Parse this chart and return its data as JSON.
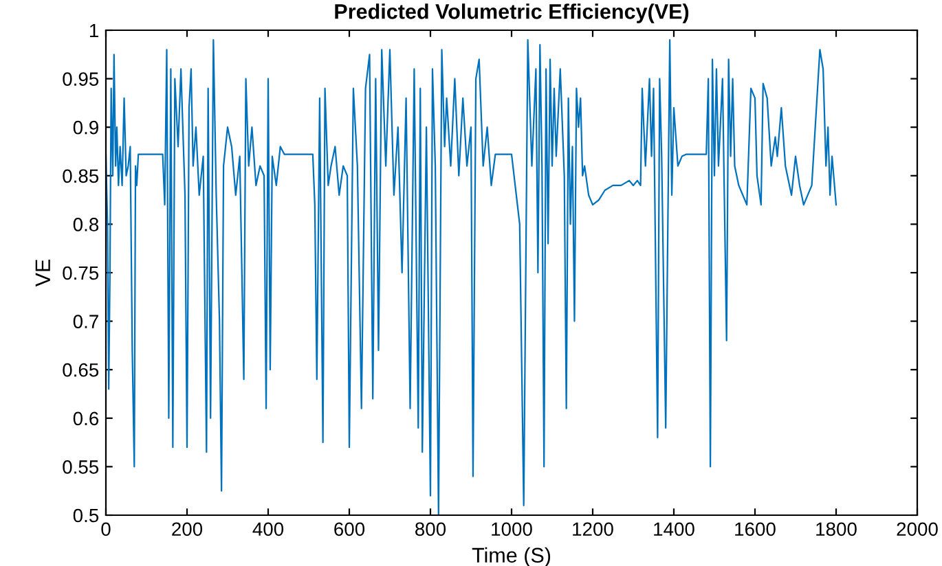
{
  "chart_data": {
    "type": "line",
    "title": "Predicted Volumetric Efficiency(VE)",
    "xlabel": "Time (S)",
    "ylabel": "VE",
    "xlim": [
      0,
      2000
    ],
    "xticks": [
      0,
      200,
      400,
      600,
      800,
      1000,
      1200,
      1400,
      1600,
      1800,
      2000
    ],
    "ylim": [
      0.5,
      1
    ],
    "yticks": [
      0.5,
      0.55,
      0.6,
      0.65,
      0.7,
      0.75,
      0.8,
      0.85,
      0.9,
      0.95,
      1
    ],
    "grid": false,
    "legend": false,
    "marker": "none",
    "line_style": "solid",
    "series": [
      {
        "color": "#0072bd",
        "x": [
          0,
          4,
          7,
          10,
          13,
          17,
          20,
          24,
          27,
          31,
          35,
          40,
          45,
          50,
          55,
          60,
          65,
          70,
          73,
          76,
          80,
          140,
          145,
          150,
          155,
          160,
          165,
          170,
          178,
          185,
          195,
          200,
          205,
          210,
          215,
          222,
          230,
          240,
          248,
          252,
          258,
          265,
          272,
          280,
          285,
          290,
          300,
          310,
          320,
          330,
          340,
          345,
          352,
          360,
          370,
          380,
          390,
          395,
          400,
          405,
          410,
          420,
          430,
          440,
          510,
          515,
          520,
          527,
          535,
          540,
          548,
          555,
          565,
          575,
          585,
          595,
          600,
          610,
          620,
          630,
          640,
          650,
          658,
          665,
          672,
          680,
          690,
          700,
          710,
          720,
          730,
          740,
          750,
          760,
          770,
          775,
          780,
          790,
          800,
          805,
          812,
          820,
          828,
          835,
          840,
          850,
          860,
          870,
          880,
          890,
          900,
          905,
          912,
          920,
          930,
          940,
          950,
          960,
          1000,
          1020,
          1030,
          1035,
          1040,
          1050,
          1060,
          1065,
          1070,
          1075,
          1080,
          1085,
          1090,
          1095,
          1100,
          1105,
          1110,
          1120,
          1130,
          1135,
          1140,
          1145,
          1150,
          1155,
          1160,
          1165,
          1170,
          1175,
          1180,
          1190,
          1200,
          1215,
          1230,
          1250,
          1270,
          1290,
          1300,
          1310,
          1318,
          1322,
          1330,
          1340,
          1345,
          1350,
          1360,
          1365,
          1370,
          1380,
          1390,
          1395,
          1400,
          1410,
          1420,
          1430,
          1480,
          1485,
          1490,
          1495,
          1500,
          1505,
          1510,
          1520,
          1530,
          1535,
          1540,
          1545,
          1550,
          1560,
          1570,
          1580,
          1590,
          1600,
          1605,
          1615,
          1620,
          1630,
          1640,
          1650,
          1655,
          1665,
          1675,
          1690,
          1700,
          1710,
          1720,
          1740,
          1760,
          1768,
          1775,
          1780,
          1785,
          1790,
          1800
        ],
        "values": [
          0.872,
          0.8,
          0.63,
          0.75,
          0.94,
          0.85,
          0.975,
          0.86,
          0.9,
          0.84,
          0.88,
          0.84,
          0.93,
          0.85,
          0.86,
          0.88,
          0.67,
          0.55,
          0.86,
          0.84,
          0.872,
          0.872,
          0.82,
          0.98,
          0.6,
          0.96,
          0.57,
          0.95,
          0.88,
          0.96,
          0.83,
          0.57,
          0.92,
          0.96,
          0.86,
          0.9,
          0.83,
          0.87,
          0.565,
          0.94,
          0.6,
          0.99,
          0.83,
          0.7,
          0.525,
          0.86,
          0.9,
          0.88,
          0.83,
          0.87,
          0.64,
          0.95,
          0.86,
          0.9,
          0.84,
          0.86,
          0.85,
          0.61,
          0.95,
          0.65,
          0.87,
          0.84,
          0.88,
          0.872,
          0.872,
          0.82,
          0.64,
          0.93,
          0.575,
          0.94,
          0.84,
          0.86,
          0.88,
          0.83,
          0.86,
          0.85,
          0.57,
          0.94,
          0.86,
          0.61,
          0.94,
          0.975,
          0.62,
          0.95,
          0.67,
          0.98,
          0.86,
          0.98,
          0.83,
          0.9,
          0.75,
          0.93,
          0.61,
          0.96,
          0.59,
          0.94,
          0.565,
          0.9,
          0.52,
          0.96,
          0.86,
          0.5,
          0.98,
          0.88,
          0.93,
          0.86,
          0.95,
          0.85,
          0.93,
          0.86,
          0.9,
          0.54,
          0.95,
          0.97,
          0.86,
          0.9,
          0.84,
          0.872,
          0.872,
          0.8,
          0.51,
          0.75,
          0.99,
          0.86,
          0.96,
          0.75,
          0.985,
          0.86,
          0.55,
          0.96,
          0.78,
          0.97,
          0.86,
          0.94,
          0.87,
          0.96,
          0.85,
          0.61,
          0.93,
          0.8,
          0.88,
          0.7,
          0.94,
          0.9,
          0.93,
          0.85,
          0.86,
          0.83,
          0.82,
          0.825,
          0.835,
          0.84,
          0.84,
          0.845,
          0.84,
          0.845,
          0.84,
          0.94,
          0.86,
          0.95,
          0.87,
          0.94,
          0.58,
          0.95,
          0.87,
          0.59,
          0.99,
          0.83,
          0.92,
          0.86,
          0.87,
          0.872,
          0.872,
          0.95,
          0.55,
          0.97,
          0.85,
          0.96,
          0.86,
          0.95,
          0.68,
          0.97,
          0.87,
          0.95,
          0.86,
          0.84,
          0.83,
          0.82,
          0.94,
          0.93,
          0.85,
          0.82,
          0.945,
          0.93,
          0.86,
          0.89,
          0.87,
          0.92,
          0.86,
          0.83,
          0.87,
          0.84,
          0.82,
          0.84,
          0.98,
          0.96,
          0.86,
          0.9,
          0.83,
          0.87,
          0.82
        ]
      }
    ]
  }
}
